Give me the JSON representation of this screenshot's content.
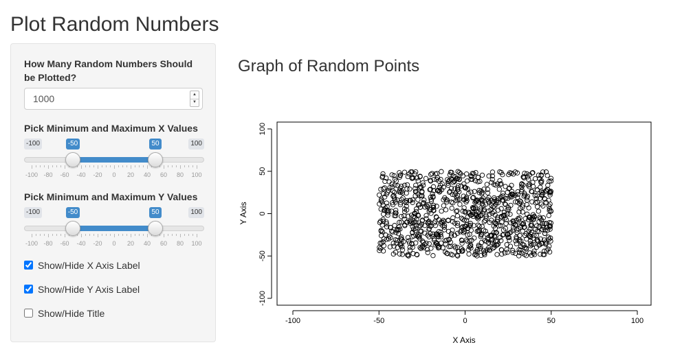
{
  "app": {
    "title": "Plot Random Numbers"
  },
  "sidebar": {
    "count_label": "How Many Random Numbers Should be Plotted?",
    "count_value": "1000",
    "x_slider": {
      "label": "Pick Minimum and Maximum X Values",
      "min": -100,
      "max": 100,
      "from": -50,
      "to": 50,
      "min_text": "-100",
      "max_text": "100",
      "from_text": "-50",
      "to_text": "50",
      "grid_labels": [
        "-100",
        "-80",
        "-60",
        "-40",
        "-20",
        "0",
        "20",
        "40",
        "60",
        "80",
        "100"
      ]
    },
    "y_slider": {
      "label": "Pick Minimum and Maximum Y Values",
      "min": -100,
      "max": 100,
      "from": -50,
      "to": 50,
      "min_text": "-100",
      "max_text": "100",
      "from_text": "-50",
      "to_text": "50",
      "grid_labels": [
        "-100",
        "-80",
        "-60",
        "-40",
        "-20",
        "0",
        "20",
        "40",
        "60",
        "80",
        "100"
      ]
    },
    "checkboxes": [
      {
        "label": "Show/Hide X Axis Label",
        "checked": true
      },
      {
        "label": "Show/Hide Y Axis Label",
        "checked": true
      },
      {
        "label": "Show/Hide Title",
        "checked": false
      }
    ]
  },
  "main": {
    "plot_title": "Graph of Random Points"
  },
  "chart_data": {
    "type": "scatter",
    "xlabel": "X Axis",
    "ylabel": "Y Axis",
    "xlim": [
      -100,
      100
    ],
    "ylim": [
      -100,
      100
    ],
    "x_ticks": [
      "-100",
      "-50",
      "0",
      "50",
      "100"
    ],
    "y_ticks": [
      "-100",
      "-50",
      "0",
      "50",
      "100"
    ],
    "n_points": 1000,
    "point_x_range": [
      -50,
      50
    ],
    "point_y_range": [
      -50,
      50
    ],
    "marker": "open-circle",
    "grid": false
  }
}
